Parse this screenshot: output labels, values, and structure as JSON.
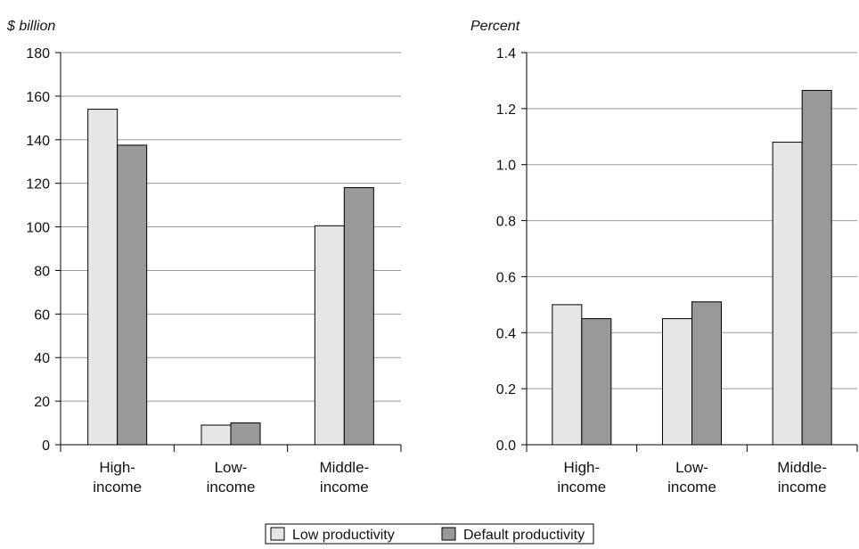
{
  "legend": {
    "low_label": "Low productivity",
    "default_label": "Default productivity"
  },
  "colors": {
    "low": "#e6e6e6",
    "default": "#999999",
    "grid": "#999999",
    "axis": "#000000"
  },
  "chart_data": [
    {
      "type": "bar",
      "title": "",
      "ylabel": "$ billion",
      "xlabel": "",
      "categories": [
        [
          "High-",
          "income"
        ],
        [
          "Low-",
          "income"
        ],
        [
          "Middle-",
          "income"
        ]
      ],
      "series": [
        {
          "name": "Low productivity",
          "values": [
            154,
            9,
            100.5
          ]
        },
        {
          "name": "Default productivity",
          "values": [
            137.5,
            10,
            118
          ]
        }
      ],
      "ylim": [
        0,
        180
      ],
      "yticks": [
        "0",
        "20",
        "40",
        "60",
        "80",
        "100",
        "120",
        "140",
        "160",
        "180"
      ],
      "grid": true,
      "legend_position": "bottom-center"
    },
    {
      "type": "bar",
      "title": "",
      "ylabel": "Percent",
      "xlabel": "",
      "categories": [
        [
          "High-",
          "income"
        ],
        [
          "Low-",
          "income"
        ],
        [
          "Middle-",
          "income"
        ]
      ],
      "series": [
        {
          "name": "Low productivity",
          "values": [
            0.5,
            0.45,
            1.08
          ]
        },
        {
          "name": "Default productivity",
          "values": [
            0.45,
            0.51,
            1.265
          ]
        }
      ],
      "ylim": [
        0,
        1.4
      ],
      "yticks": [
        "0.0",
        "0.2",
        "0.4",
        "0.6",
        "0.8",
        "1.0",
        "1.2",
        "1.4"
      ],
      "grid": true,
      "legend_position": "bottom-center"
    }
  ]
}
